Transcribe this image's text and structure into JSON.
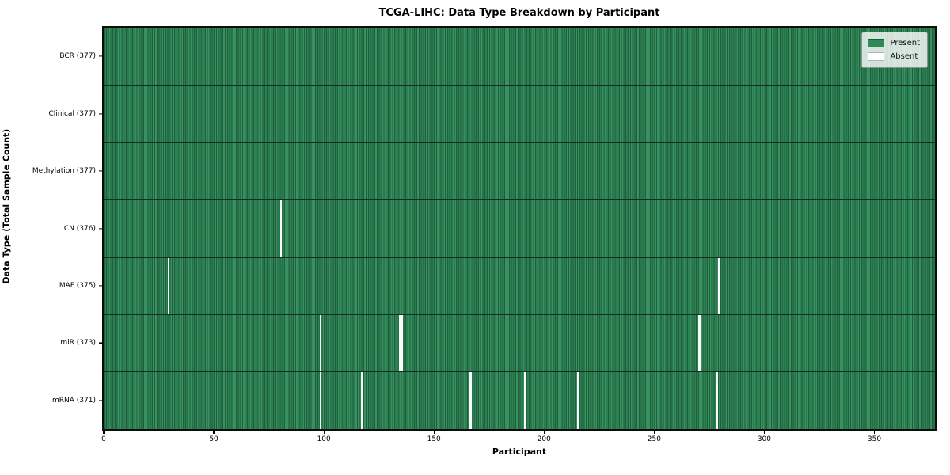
{
  "title": "TCGA-LIHC: Data Type Breakdown by Participant",
  "chart_data": {
    "type": "heatmap",
    "title": "TCGA-LIHC: Data Type Breakdown by Participant",
    "xlabel": "Participant",
    "ylabel": "Data Type (Total Sample Count)",
    "n_participants": 377,
    "x_axis_max": 377.5,
    "x_ticks": [
      0,
      50,
      100,
      150,
      200,
      250,
      300,
      350
    ],
    "grid": false,
    "legend_position": "upper right",
    "legend": [
      {
        "label": "Present",
        "color": "#2e8b57"
      },
      {
        "label": "Absent",
        "color": "#ffffff"
      }
    ],
    "colors": {
      "present": "#2e8b57",
      "present_edge": "#1f5f3d",
      "absent": "#ffffff",
      "row_divider": "#132e21",
      "plot_border": "#0d0d0d"
    },
    "rows": [
      {
        "label": "BCR (377)",
        "data_type": "BCR",
        "total_sample_count": 377,
        "absent_participants": []
      },
      {
        "label": "Clinical (377)",
        "data_type": "Clinical",
        "total_sample_count": 377,
        "absent_participants": []
      },
      {
        "label": "Methylation (377)",
        "data_type": "Methylation",
        "total_sample_count": 377,
        "absent_participants": []
      },
      {
        "label": "CN (376)",
        "data_type": "CN",
        "total_sample_count": 376,
        "absent_participants": [
          80
        ]
      },
      {
        "label": "MAF (375)",
        "data_type": "MAF",
        "total_sample_count": 375,
        "absent_participants": [
          29,
          279
        ]
      },
      {
        "label": "miR (373)",
        "data_type": "miR",
        "total_sample_count": 373,
        "absent_participants": [
          98,
          134,
          135,
          270
        ]
      },
      {
        "label": "mRNA (371)",
        "data_type": "mRNA",
        "total_sample_count": 371,
        "absent_participants": [
          98,
          117,
          166,
          191,
          215,
          278
        ]
      }
    ]
  }
}
